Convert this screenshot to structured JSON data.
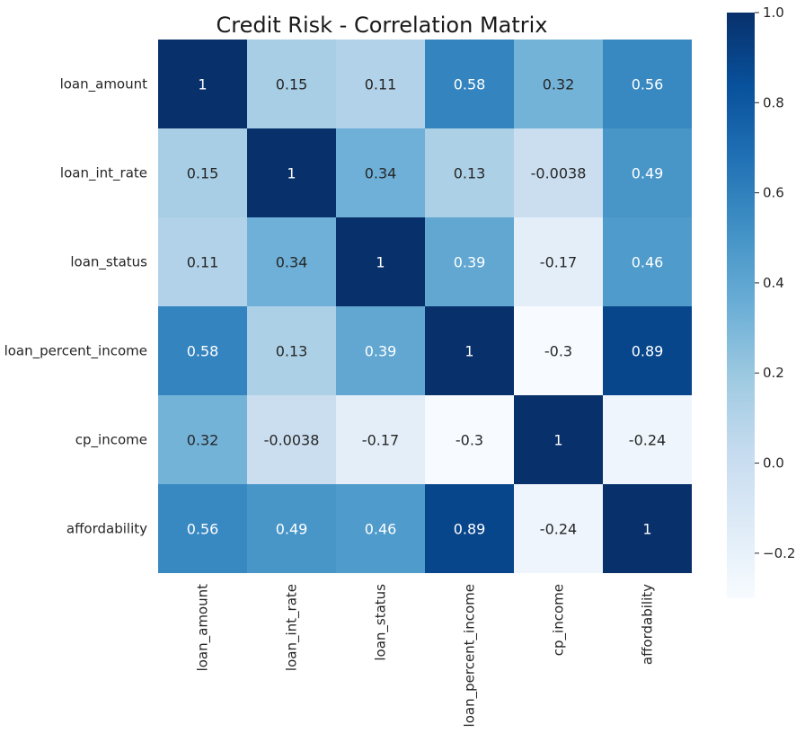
{
  "chart_data": {
    "type": "heatmap",
    "title": "Credit Risk - Correlation Matrix",
    "row_labels": [
      "loan_amount",
      "loan_int_rate",
      "loan_status",
      "loan_percent_income",
      "cp_income",
      "affordability"
    ],
    "col_labels": [
      "loan_amount",
      "loan_int_rate",
      "loan_status",
      "loan_percent_income",
      "cp_income",
      "affordability"
    ],
    "values": [
      [
        1,
        0.15,
        0.11,
        0.58,
        0.32,
        0.56
      ],
      [
        0.15,
        1,
        0.34,
        0.13,
        -0.0038,
        0.49
      ],
      [
        0.11,
        0.34,
        1,
        0.39,
        -0.17,
        0.46
      ],
      [
        0.58,
        0.13,
        0.39,
        1,
        -0.3,
        0.89
      ],
      [
        0.32,
        -0.0038,
        -0.17,
        -0.3,
        1,
        -0.24
      ],
      [
        0.56,
        0.49,
        0.46,
        0.89,
        -0.24,
        1
      ]
    ],
    "cell_labels": [
      [
        "1",
        "0.15",
        "0.11",
        "0.58",
        "0.32",
        "0.56"
      ],
      [
        "0.15",
        "1",
        "0.34",
        "0.13",
        "-0.0038",
        "0.49"
      ],
      [
        "0.11",
        "0.34",
        "1",
        "0.39",
        "-0.17",
        "0.46"
      ],
      [
        "0.58",
        "0.13",
        "0.39",
        "1",
        "-0.3",
        "0.89"
      ],
      [
        "0.32",
        "-0.0038",
        "-0.17",
        "-0.3",
        "1",
        "-0.24"
      ],
      [
        "0.56",
        "0.49",
        "0.46",
        "0.89",
        "-0.24",
        "1"
      ]
    ],
    "colormap": "Blues",
    "colorbar": {
      "vmin": -0.3,
      "vmax": 1.0,
      "ticks": [
        -0.2,
        0.0,
        0.2,
        0.4,
        0.6,
        0.8,
        1.0
      ],
      "tick_labels": [
        "−0.2",
        "0.0",
        "0.2",
        "0.4",
        "0.6",
        "0.8",
        "1.0"
      ]
    }
  }
}
